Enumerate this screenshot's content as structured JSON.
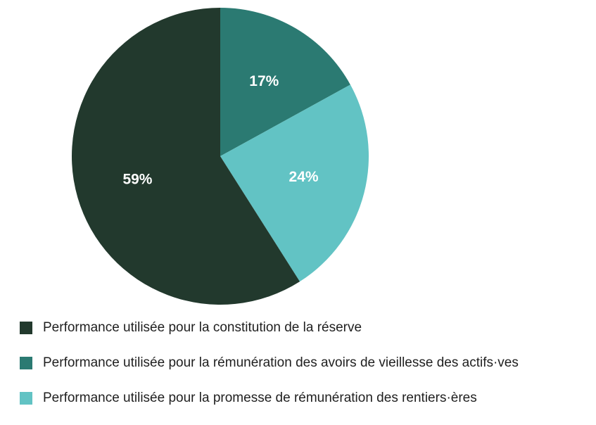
{
  "chart_data": {
    "type": "pie",
    "categories": [
      "Performance utilisée pour la constitution de la réserve",
      "Performance utilisée pour la rémunération des avoirs de vieillesse des actifs·ves",
      "Performance utilisée pour la promesse de rémunération des rentiers·ères"
    ],
    "values": [
      59,
      17,
      24
    ],
    "labels": [
      "59%",
      "17%",
      "24%"
    ],
    "colors": [
      "#22392d",
      "#2b7a72",
      "#62c3c4"
    ],
    "start_order": [
      1,
      2,
      0
    ],
    "legend_position": "bottom-left"
  },
  "legend": {
    "items": [
      {
        "label": "Performance utilisée pour la constitution de la réserve",
        "color": "#22392d"
      },
      {
        "label": "Performance utilisée pour la rémunération des avoirs de vieillesse des actifs·ves",
        "color": "#2b7a72"
      },
      {
        "label": "Performance utilisée pour la promesse de rémunération des rentiers·ères",
        "color": "#62c3c4"
      }
    ]
  }
}
